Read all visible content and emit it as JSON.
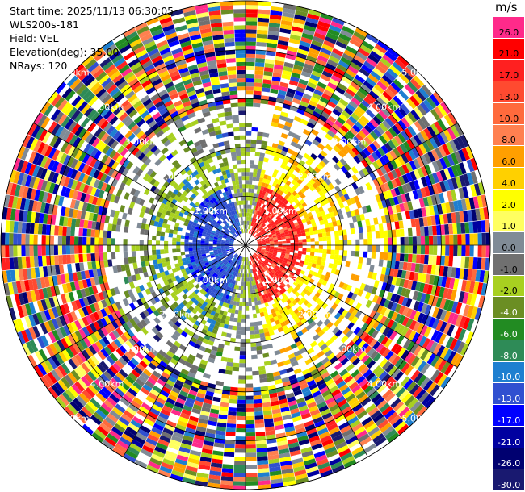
{
  "info": {
    "start_time": "Start time: 2025/11/13 06:30:05",
    "station": "WLS200s-181",
    "field": "Field: VEL",
    "elevation": "Elevation(deg): 35.00",
    "nrays": "NRays: 120"
  },
  "colorbar": {
    "unit": "m/s",
    "levels": [
      {
        "label": "26.0",
        "color": "#ff2a8a"
      },
      {
        "label": "21.0",
        "color": "#ff0000"
      },
      {
        "label": "17.0",
        "color": "#ff2020"
      },
      {
        "label": "13.0",
        "color": "#ff4a30"
      },
      {
        "label": "10.0",
        "color": "#ff6a3c"
      },
      {
        "label": "8.0",
        "color": "#ff8050"
      },
      {
        "label": "6.0",
        "color": "#ff9f00"
      },
      {
        "label": "4.0",
        "color": "#ffd000"
      },
      {
        "label": "2.0",
        "color": "#ffff00"
      },
      {
        "label": "1.0",
        "color": "#ffff60"
      },
      {
        "label": "0.0",
        "color": "#808b96"
      },
      {
        "label": "-1.0",
        "color": "#707070"
      },
      {
        "label": "-2.0",
        "color": "#a8d020"
      },
      {
        "label": "-4.0",
        "color": "#6b8e23"
      },
      {
        "label": "-6.0",
        "color": "#228b22"
      },
      {
        "label": "-8.0",
        "color": "#2e8b57"
      },
      {
        "label": "-10.0",
        "color": "#1e7fd0"
      },
      {
        "label": "-13.0",
        "color": "#3050d0"
      },
      {
        "label": "-17.0",
        "color": "#0000ff"
      },
      {
        "label": "-21.0",
        "color": "#0000a0"
      },
      {
        "label": "-26.0",
        "color": "#000070"
      },
      {
        "label": "-30.0",
        "color": "#191970"
      }
    ]
  },
  "chart_data": {
    "type": "heatmap",
    "projection": "polar",
    "field": "VEL",
    "unit": "m/s",
    "nrays": 120,
    "range_rings": [
      {
        "label": "1.00km"
      },
      {
        "label": "2.00km"
      },
      {
        "label": "3.00km"
      },
      {
        "label": "4.00km"
      },
      {
        "label": "5.00km"
      }
    ],
    "range_max_km": 5.0,
    "pattern": "dipole: negative (blue) toward west, positive (red/yellow) toward east near center; noise beyond ~3 km"
  }
}
